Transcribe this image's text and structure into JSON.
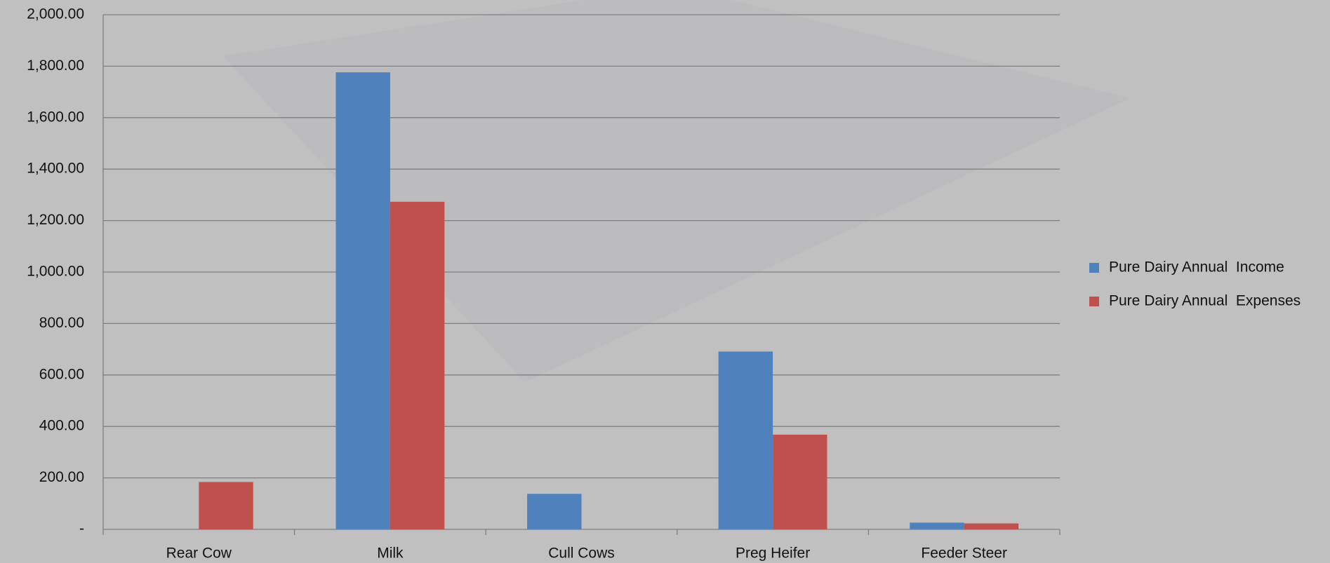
{
  "chart_data": {
    "type": "bar",
    "categories": [
      "Rear Cow",
      "Milk",
      "Cull Cows",
      "Preg Heifer",
      "Feeder Steer"
    ],
    "series": [
      {
        "name": "Pure Dairy Annual  Income",
        "color": "#4f81bd",
        "values": [
          0,
          1776,
          138,
          691,
          26
        ]
      },
      {
        "name": "Pure Dairy Annual  Expenses",
        "color": "#c0504d",
        "values": [
          184,
          1273,
          0,
          368,
          23
        ]
      }
    ],
    "ylim": [
      0,
      2000
    ],
    "yticks": [
      {
        "value": 0,
        "label": "-"
      },
      {
        "value": 200,
        "label": "200.00"
      },
      {
        "value": 400,
        "label": "400.00"
      },
      {
        "value": 600,
        "label": "600.00"
      },
      {
        "value": 800,
        "label": "800.00"
      },
      {
        "value": 1000,
        "label": "1,000.00"
      },
      {
        "value": 1200,
        "label": "1,200.00"
      },
      {
        "value": 1400,
        "label": "1,400.00"
      },
      {
        "value": 1600,
        "label": "1,600.00"
      },
      {
        "value": 1800,
        "label": "1,800.00"
      },
      {
        "value": 2000,
        "label": "2,000.00"
      }
    ],
    "grid": true,
    "legend": "right"
  }
}
